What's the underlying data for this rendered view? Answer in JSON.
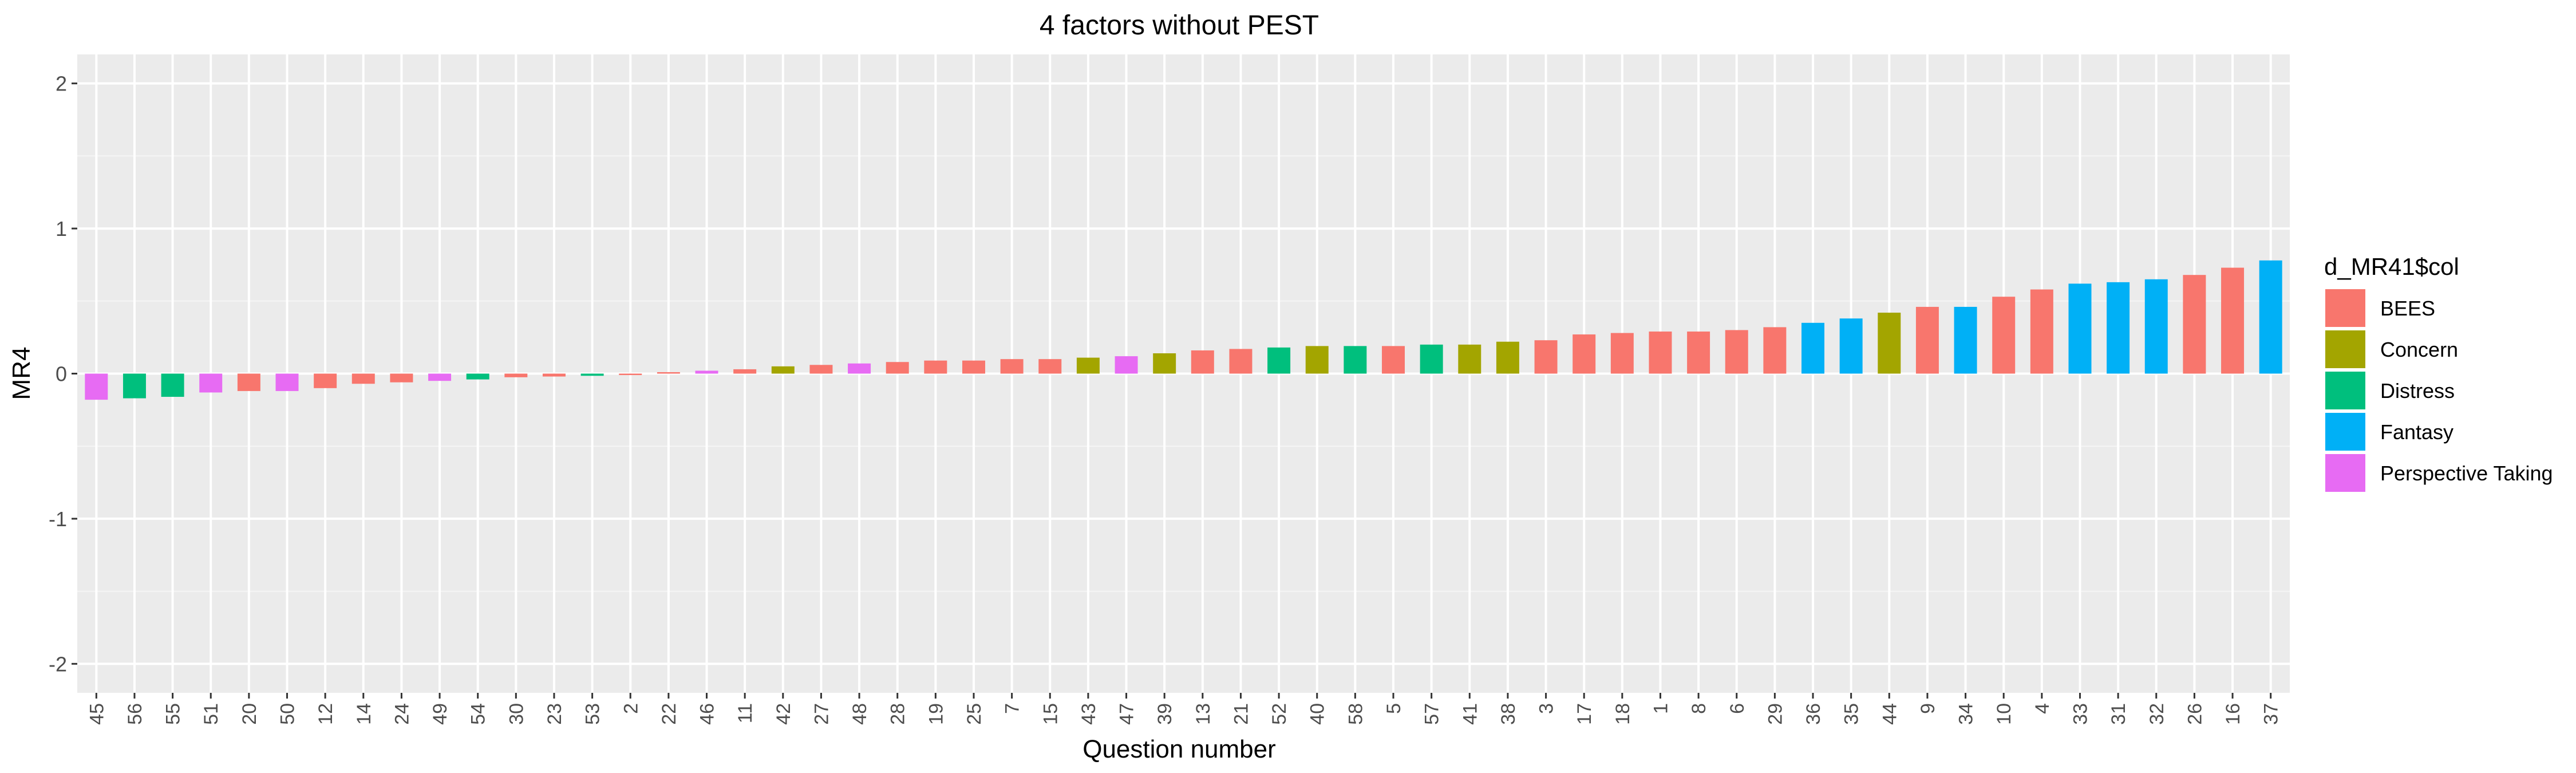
{
  "chart_data": {
    "type": "bar",
    "title": "4 factors without PEST",
    "xlabel": "Question number",
    "ylabel": "MR4",
    "ylim": [
      -2.2,
      2.2
    ],
    "yticks": [
      -2,
      -1,
      0,
      1,
      2
    ],
    "grid": true,
    "legend_position": "right",
    "legend_title": "d_MR41$col",
    "groups": [
      {
        "name": "BEES",
        "color": "#F8766D"
      },
      {
        "name": "Concern",
        "color": "#A3A500"
      },
      {
        "name": "Distress",
        "color": "#00BF7D"
      },
      {
        "name": "Fantasy",
        "color": "#00B0F6"
      },
      {
        "name": "Perspective Taking",
        "color": "#E76BF3"
      }
    ],
    "categories": [
      "45",
      "56",
      "55",
      "51",
      "20",
      "50",
      "12",
      "14",
      "24",
      "49",
      "54",
      "30",
      "23",
      "53",
      "2",
      "22",
      "46",
      "11",
      "42",
      "27",
      "48",
      "28",
      "19",
      "25",
      "7",
      "15",
      "43",
      "47",
      "39",
      "13",
      "21",
      "52",
      "40",
      "58",
      "5",
      "57",
      "41",
      "38",
      "3",
      "17",
      "18",
      "1",
      "8",
      "6",
      "29",
      "36",
      "35",
      "44",
      "9",
      "34",
      "10",
      "4",
      "33",
      "31",
      "32",
      "26",
      "16",
      "37"
    ],
    "values": [
      -0.18,
      -0.17,
      -0.16,
      -0.13,
      -0.12,
      -0.12,
      -0.1,
      -0.07,
      -0.06,
      -0.05,
      -0.04,
      -0.025,
      -0.02,
      -0.015,
      -0.01,
      0.01,
      0.02,
      0.03,
      0.05,
      0.06,
      0.07,
      0.08,
      0.09,
      0.09,
      0.1,
      0.1,
      0.11,
      0.12,
      0.14,
      0.16,
      0.17,
      0.18,
      0.19,
      0.19,
      0.19,
      0.2,
      0.2,
      0.22,
      0.23,
      0.27,
      0.28,
      0.29,
      0.29,
      0.3,
      0.32,
      0.35,
      0.38,
      0.42,
      0.46,
      0.46,
      0.53,
      0.58,
      0.62,
      0.63,
      0.65,
      0.68,
      0.73,
      0.78
    ],
    "value_groups": [
      "Perspective Taking",
      "Distress",
      "Distress",
      "Perspective Taking",
      "BEES",
      "Perspective Taking",
      "BEES",
      "BEES",
      "BEES",
      "Perspective Taking",
      "Distress",
      "BEES",
      "BEES",
      "Distress",
      "BEES",
      "BEES",
      "Perspective Taking",
      "BEES",
      "Concern",
      "BEES",
      "Perspective Taking",
      "BEES",
      "BEES",
      "BEES",
      "BEES",
      "BEES",
      "Concern",
      "Perspective Taking",
      "Concern",
      "BEES",
      "BEES",
      "Distress",
      "Concern",
      "Distress",
      "BEES",
      "Distress",
      "Concern",
      "Concern",
      "BEES",
      "BEES",
      "BEES",
      "BEES",
      "BEES",
      "BEES",
      "BEES",
      "Fantasy",
      "Fantasy",
      "Concern",
      "BEES",
      "Fantasy",
      "BEES",
      "BEES",
      "Fantasy",
      "Fantasy",
      "Fantasy",
      "BEES",
      "BEES",
      "Fantasy"
    ]
  }
}
